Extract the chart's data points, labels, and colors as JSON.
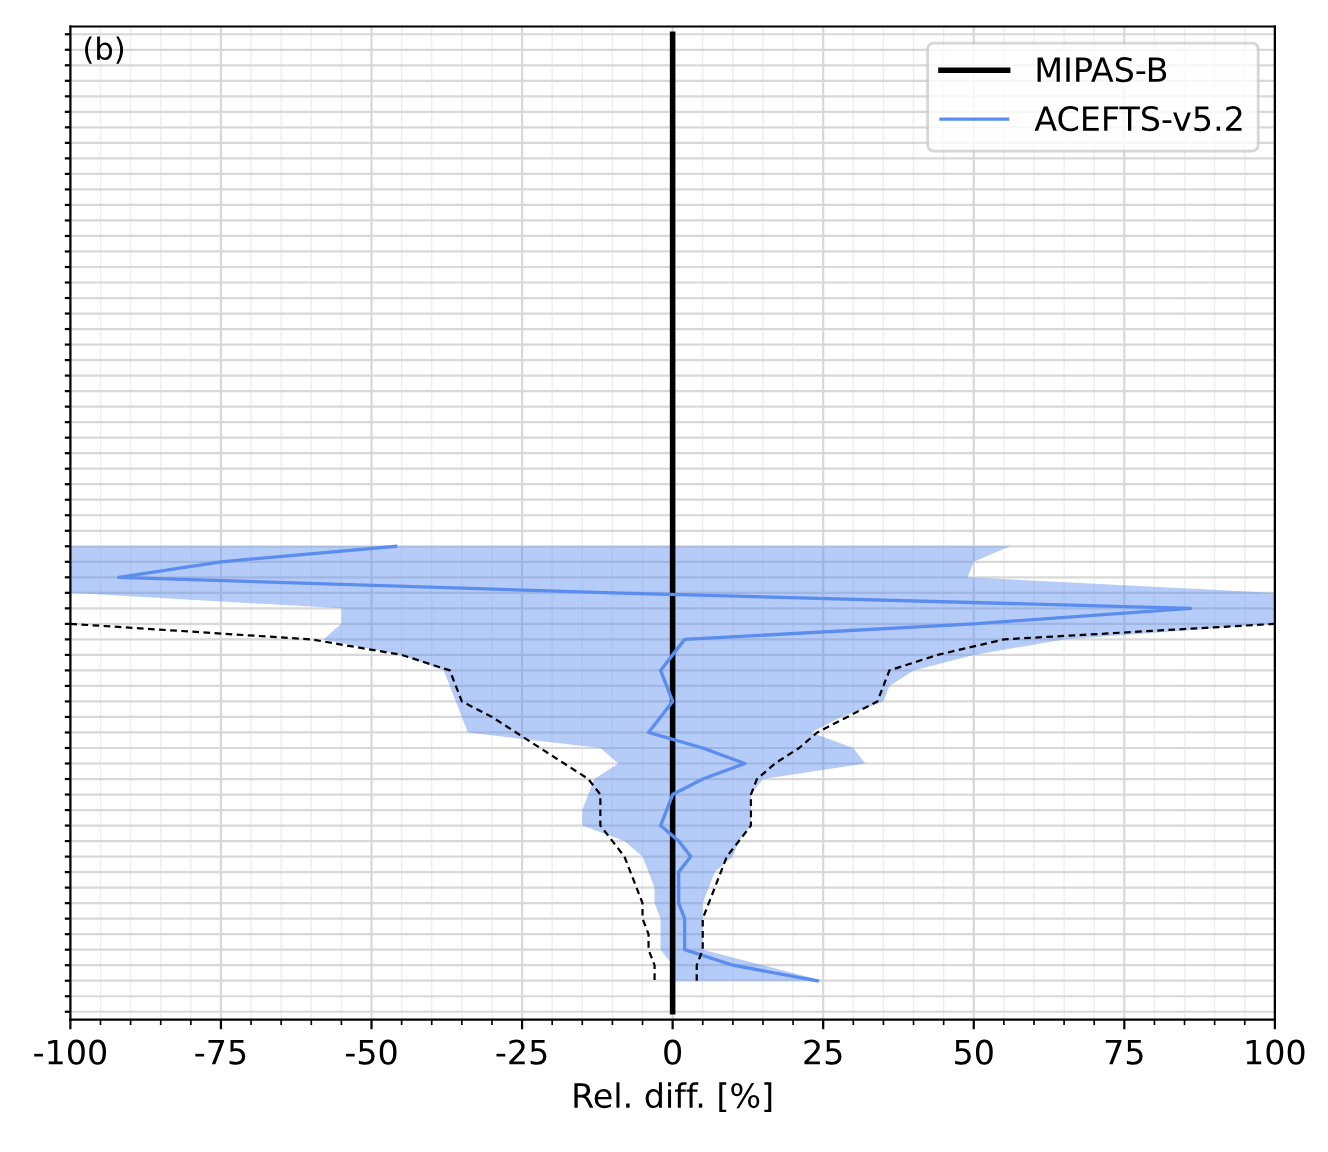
{
  "chart_data": {
    "type": "line",
    "orientation": "horizontal",
    "xlabel": "Rel. diff. [%]",
    "annotations": [
      "(b)"
    ],
    "categories": [
      null,
      null,
      null,
      null,
      null,
      null,
      null,
      null,
      null,
      null,
      null,
      null,
      null,
      null,
      null,
      null,
      null,
      null,
      null,
      null,
      null,
      null,
      null,
      null,
      null,
      null,
      null,
      null,
      null,
      null,
      null,
      null,
      null,
      null,
      null,
      null,
      null,
      null,
      null,
      null,
      null,
      null,
      null,
      null,
      null,
      null,
      null,
      null,
      null,
      null,
      null,
      null,
      null,
      null,
      null,
      null,
      null,
      null,
      null,
      null,
      null,
      null,
      null,
      null
    ],
    "xlim": [
      -100,
      100
    ],
    "xticks": [
      -100,
      -75,
      -50,
      -25,
      0,
      25,
      50,
      75,
      100
    ],
    "tick_labels": "x",
    "grid": true,
    "legend": "top right",
    "series": [
      {
        "name": "MIPAS-B",
        "color": "#000000",
        "line_style": "solid",
        "values": [
          0,
          0,
          0,
          0,
          0,
          0,
          0,
          0,
          0,
          0,
          0,
          0,
          0,
          0,
          0,
          0,
          0,
          0,
          0,
          0,
          0,
          0,
          0,
          0,
          0,
          0,
          0,
          0,
          0,
          0,
          0,
          0,
          0,
          0,
          0,
          0,
          0,
          0,
          0,
          0,
          0,
          0,
          0,
          0,
          0,
          0,
          0,
          0,
          0,
          0,
          0,
          0,
          0,
          0,
          0,
          0,
          0,
          0,
          0,
          0,
          0,
          0,
          0,
          0
        ]
      },
      {
        "name": "ACEFTS-v5.2",
        "color": "#5b8def",
        "line_style": "solid",
        "values": [
          null,
          null,
          null,
          null,
          null,
          null,
          null,
          null,
          null,
          null,
          null,
          null,
          null,
          null,
          null,
          null,
          null,
          null,
          null,
          null,
          null,
          null,
          null,
          null,
          null,
          null,
          null,
          null,
          null,
          null,
          null,
          null,
          null,
          -46,
          -75,
          -92,
          -10,
          86,
          50,
          2,
          0,
          -2,
          -1,
          0,
          -2,
          -4,
          5,
          12,
          5,
          0,
          -1,
          -2,
          1,
          3,
          1,
          1,
          1,
          2,
          2,
          2,
          10,
          24,
          null,
          null
        ],
        "lower": [
          null,
          null,
          null,
          null,
          null,
          null,
          null,
          null,
          null,
          null,
          null,
          null,
          null,
          null,
          null,
          null,
          null,
          null,
          null,
          null,
          null,
          null,
          null,
          null,
          null,
          null,
          null,
          null,
          null,
          null,
          null,
          null,
          null,
          -100,
          -100,
          -100,
          -100,
          -55,
          -55,
          -58,
          -45,
          -38,
          -37,
          -36,
          -35,
          -34,
          -12,
          -9,
          -13,
          -14,
          -15,
          -15,
          -8,
          -5,
          -4,
          -3,
          -3,
          -2,
          -2,
          -2,
          0,
          0,
          null,
          null
        ],
        "upper": [
          null,
          null,
          null,
          null,
          null,
          null,
          null,
          null,
          null,
          null,
          null,
          null,
          null,
          null,
          null,
          null,
          null,
          null,
          null,
          null,
          null,
          null,
          null,
          null,
          null,
          null,
          null,
          null,
          null,
          null,
          null,
          null,
          null,
          56,
          50,
          49,
          100,
          100,
          100,
          65,
          50,
          40,
          36,
          35,
          28,
          23,
          30,
          32,
          15,
          13,
          13,
          13,
          11,
          10,
          7,
          6,
          5,
          5,
          5,
          5,
          15,
          25,
          null,
          null
        ]
      },
      {
        "color": "#000000",
        "line_style": "dashed",
        "values": [
          null,
          null,
          null,
          null,
          null,
          null,
          null,
          null,
          null,
          null,
          null,
          null,
          null,
          null,
          null,
          null,
          null,
          null,
          null,
          null,
          null,
          null,
          null,
          null,
          null,
          null,
          null,
          null,
          null,
          null,
          null,
          null,
          null,
          null,
          null,
          null,
          null,
          null,
          -100,
          -60,
          -45,
          -37,
          -36,
          -35,
          -30,
          -26,
          -22,
          -18,
          -14,
          -12,
          -12,
          -12,
          -10,
          -8,
          -7,
          -6,
          -5,
          -5,
          -4,
          -4,
          -3,
          -3,
          null,
          null
        ]
      },
      {
        "color": "#000000",
        "line_style": "dashed",
        "values": [
          null,
          null,
          null,
          null,
          null,
          null,
          null,
          null,
          null,
          null,
          null,
          null,
          null,
          null,
          null,
          null,
          null,
          null,
          null,
          null,
          null,
          null,
          null,
          null,
          null,
          null,
          null,
          null,
          null,
          null,
          null,
          null,
          null,
          null,
          null,
          null,
          null,
          null,
          100,
          55,
          44,
          36,
          35,
          34,
          29,
          24,
          21,
          17,
          14,
          13,
          13,
          13,
          11,
          9,
          8,
          7,
          6,
          5,
          5,
          5,
          4,
          4,
          null,
          null
        ]
      }
    ]
  }
}
